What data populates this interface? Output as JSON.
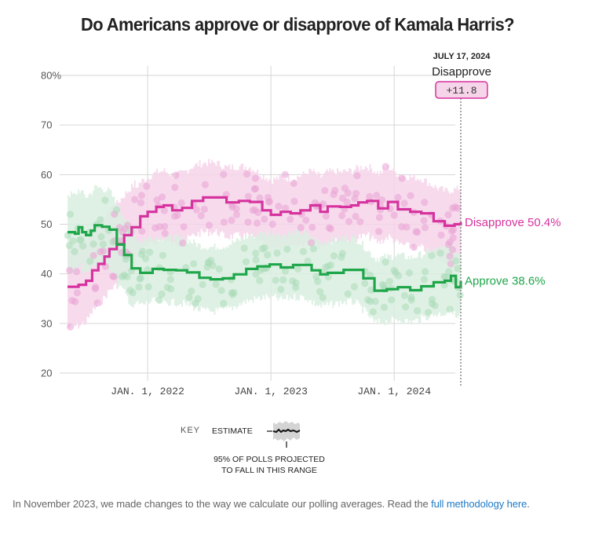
{
  "title": "Do Americans approve or disapprove of Kamala Harris?",
  "annotation": {
    "date": "JULY 17, 2024",
    "leader": "Disapprove",
    "margin": "+11.8"
  },
  "key": {
    "label": "KEY",
    "estimate": "ESTIMATE",
    "range_line1": "95% OF POLLS PROJECTED",
    "range_line2": "TO FALL IN THIS RANGE"
  },
  "footnote": {
    "text": "In November 2023, we made changes to the way we calculate our polling averages. Read the ",
    "link": "full methodology here",
    "end": "."
  },
  "colors": {
    "disapprove": "#d6339e",
    "approve": "#1fa64a",
    "disapprove_band": "#f6d5ea",
    "approve_band": "#d9efe0",
    "grid": "#d6d6d6"
  },
  "chart_data": {
    "type": "line",
    "title": "Do Americans approve or disapprove of Kamala Harris?",
    "xlabel": "",
    "ylabel": "",
    "ylim": [
      20,
      80
    ],
    "xlim": [
      2021.35,
      2024.54
    ],
    "y_ticks": [
      {
        "value": 80,
        "label": "80%"
      },
      {
        "value": 70,
        "label": "70"
      },
      {
        "value": 60,
        "label": "60"
      },
      {
        "value": 50,
        "label": "50"
      },
      {
        "value": 40,
        "label": "40"
      },
      {
        "value": 30,
        "label": "30"
      },
      {
        "value": 20,
        "label": "20"
      }
    ],
    "x_ticks": [
      {
        "value": 2022.0,
        "label": "JAN. 1, 2022"
      },
      {
        "value": 2023.0,
        "label": "JAN. 1, 2023"
      },
      {
        "value": 2024.0,
        "label": "JAN. 1, 2024"
      }
    ],
    "grid": true,
    "end_date": 2024.54,
    "series": [
      {
        "name": "Disapprove",
        "end_label": "Disapprove 50.4%",
        "final": 50.4,
        "band_halfwidth": 7,
        "x": [
          2021.35,
          2021.44,
          2021.5,
          2021.55,
          2021.6,
          2021.65,
          2021.69,
          2021.75,
          2021.81,
          2021.87,
          2021.94,
          2022.0,
          2022.07,
          2022.13,
          2022.2,
          2022.28,
          2022.36,
          2022.45,
          2022.55,
          2022.64,
          2022.74,
          2022.83,
          2022.93,
          2023.0,
          2023.08,
          2023.16,
          2023.24,
          2023.32,
          2023.4,
          2023.46,
          2023.56,
          2023.65,
          2023.71,
          2023.78,
          2023.87,
          2023.95,
          2024.03,
          2024.13,
          2024.22,
          2024.32,
          2024.41,
          2024.49,
          2024.54
        ],
        "values": [
          37.4,
          37.8,
          38.6,
          40.7,
          42.0,
          43.5,
          45.0,
          46.0,
          47.8,
          49.4,
          51.6,
          52.5,
          53.5,
          53.8,
          52.8,
          53.3,
          54.7,
          55.4,
          55.4,
          54.4,
          54.7,
          54.5,
          52.8,
          51.9,
          52.5,
          52.2,
          52.8,
          53.8,
          52.5,
          53.6,
          53.5,
          53.8,
          54.4,
          54.7,
          53.2,
          54.5,
          53.0,
          52.5,
          52.2,
          50.6,
          49.7,
          50.0,
          50.4
        ]
      },
      {
        "name": "Approve",
        "end_label": "Approve 38.6%",
        "final": 38.6,
        "band_halfwidth": 6.5,
        "x": [
          2021.35,
          2021.41,
          2021.44,
          2021.47,
          2021.5,
          2021.54,
          2021.57,
          2021.63,
          2021.69,
          2021.75,
          2021.81,
          2021.87,
          2021.94,
          2022.04,
          2022.13,
          2022.23,
          2022.32,
          2022.42,
          2022.51,
          2022.61,
          2022.7,
          2022.8,
          2022.89,
          2022.99,
          2023.08,
          2023.18,
          2023.27,
          2023.33,
          2023.4,
          2023.46,
          2023.59,
          2023.68,
          2023.75,
          2023.84,
          2023.94,
          2024.03,
          2024.13,
          2024.22,
          2024.32,
          2024.41,
          2024.46,
          2024.5,
          2024.54
        ],
        "values": [
          48.4,
          48.1,
          49.4,
          48.4,
          47.8,
          48.7,
          49.8,
          49.5,
          48.9,
          45.9,
          43.8,
          41.1,
          40.2,
          41.0,
          40.8,
          40.7,
          40.3,
          39.2,
          38.9,
          39.1,
          39.9,
          41.0,
          41.5,
          41.9,
          41.3,
          41.8,
          41.8,
          40.7,
          39.9,
          40.2,
          40.8,
          40.8,
          39.1,
          36.6,
          36.9,
          37.3,
          36.7,
          37.5,
          38.3,
          38.6,
          39.6,
          37.3,
          38.6
        ]
      }
    ]
  }
}
